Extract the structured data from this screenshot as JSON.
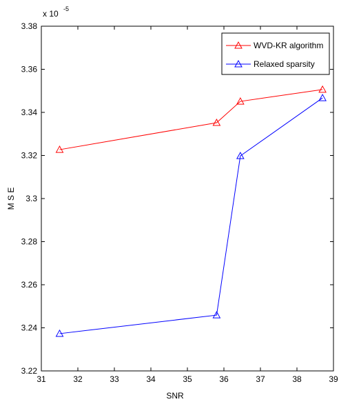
{
  "chart_data": {
    "type": "line",
    "x_label": "SNR",
    "y_label": "M S E",
    "y_multiplier": "x 10",
    "y_exponent": "-5",
    "x": [
      31.5,
      35.8,
      36.45,
      38.7
    ],
    "series": [
      {
        "name": "WVD-KR algorithm",
        "color": "#ff0000",
        "values": [
          3.3227,
          3.3352,
          3.3451,
          3.3506
        ]
      },
      {
        "name": "Relaxed sparsity",
        "color": "#0000ff",
        "values": [
          3.2373,
          3.2459,
          3.3198,
          3.3467
        ]
      }
    ],
    "xlim": [
      31,
      39
    ],
    "xticks": [
      31,
      32,
      33,
      34,
      35,
      36,
      37,
      38,
      39
    ],
    "ylim": [
      3.22,
      3.38
    ],
    "yticks": [
      3.22,
      3.24,
      3.26,
      3.28,
      3.3,
      3.32,
      3.34,
      3.36,
      3.38
    ],
    "legend": "upper-right",
    "grid": false
  }
}
